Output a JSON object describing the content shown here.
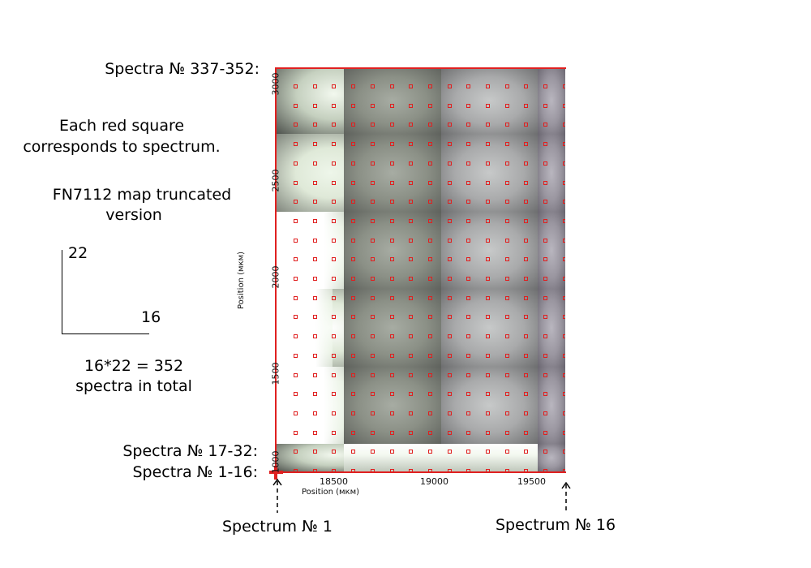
{
  "labels": {
    "spectra_top": "Spectra № 337-352:",
    "spectra_row2": "Spectra № 17-32:",
    "spectra_row1": "Spectra № 1-16:",
    "spectrum_first": "Spectrum № 1",
    "spectrum_last": "Spectrum № 16"
  },
  "notes": {
    "red_square_line1": "Each red square",
    "red_square_line2": "corresponds to spectrum.",
    "map_line1": "FN7112 map truncated",
    "map_line2": "version",
    "dim_vertical": "22",
    "dim_horizontal": "16",
    "total_line1": "16*22 = 352",
    "total_line2": "spectra in total"
  },
  "map": {
    "x_axis_title": "Position (мкм)",
    "y_axis_title": "Position (мкм)",
    "x_ticks": [
      "18500",
      "19000",
      "19500"
    ],
    "y_ticks": [
      "3000",
      "2500",
      "2000",
      "1500",
      "1000"
    ],
    "grid_columns": 16,
    "grid_rows": 22,
    "marker_color": "#e02020",
    "axis_color": "#e02020"
  }
}
